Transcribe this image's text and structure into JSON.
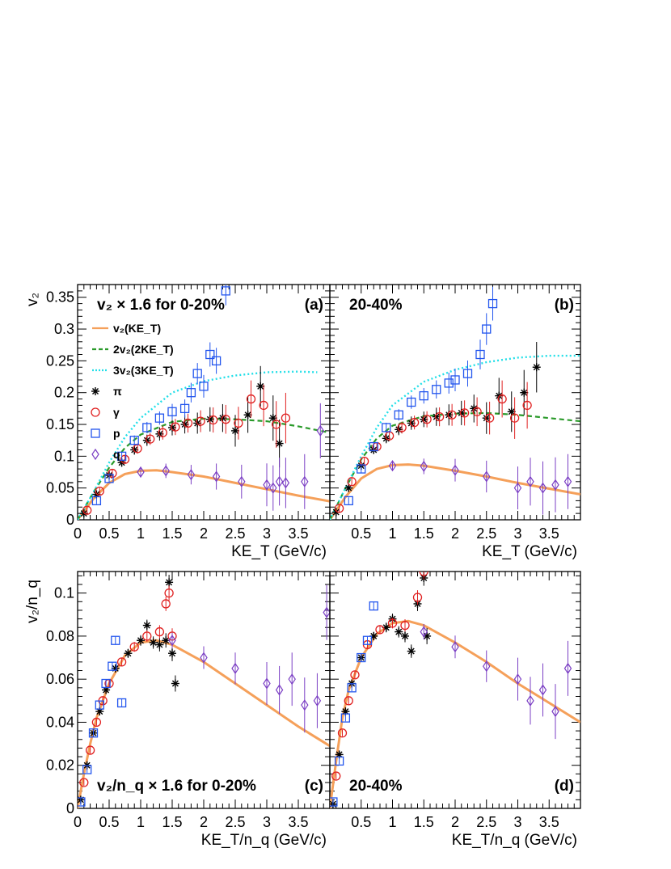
{
  "chart_data": [
    {
      "id": "a",
      "type": "scatter",
      "panel_label": "(a)",
      "title": "v₂ × 1.6 for 0-20%",
      "xlabel": "KE_T (GeV/c)",
      "ylabel": "v₂",
      "xlim": [
        0,
        4.0
      ],
      "ylim": [
        0,
        0.37
      ],
      "xticks": [
        "0",
        "0.5",
        "1",
        "1.5",
        "2",
        "2.5",
        "3",
        "3.5"
      ],
      "yticks": [
        "0",
        "0.05",
        "0.1",
        "0.15",
        "0.2",
        "0.25",
        "0.3",
        "0.35"
      ],
      "legend": [
        {
          "label": "v₂(KE_T)",
          "style": "solid",
          "color": "#f5a05a"
        },
        {
          "label": "2v₂(2KE_T)",
          "style": "dashed",
          "color": "#2a9a2a"
        },
        {
          "label": "3v₂(3KE_T)",
          "style": "dotted",
          "color": "#22dfe8"
        },
        {
          "label": "π",
          "marker": "star",
          "color": "#000000"
        },
        {
          "label": "γ",
          "marker": "circle",
          "color": "#e02020"
        },
        {
          "label": "p",
          "marker": "square",
          "color": "#2255ee"
        },
        {
          "label": "q",
          "marker": "diamond",
          "color": "#7b3fc4"
        }
      ],
      "series": [
        {
          "name": "v₂(KE_T)",
          "x": [
            0,
            0.25,
            0.5,
            0.75,
            1.0,
            1.25,
            1.5,
            2.0,
            2.5,
            3.0,
            3.5,
            4.0
          ],
          "y": [
            0,
            0.033,
            0.058,
            0.072,
            0.077,
            0.078,
            0.075,
            0.068,
            0.058,
            0.048,
            0.038,
            0.029
          ]
        },
        {
          "name": "2v₂(2KE_T)",
          "x": [
            0,
            0.25,
            0.5,
            0.75,
            1.0,
            1.5,
            2.0,
            2.5,
            3.0,
            3.5,
            4.0
          ],
          "y": [
            0,
            0.043,
            0.082,
            0.113,
            0.134,
            0.154,
            0.159,
            0.158,
            0.155,
            0.147,
            0.137
          ]
        },
        {
          "name": "3v₂(3KE_T)",
          "x": [
            0,
            0.25,
            0.5,
            0.75,
            1.0,
            1.5,
            2.0,
            2.5,
            3.0,
            3.5,
            3.8
          ],
          "y": [
            0,
            0.043,
            0.09,
            0.13,
            0.16,
            0.2,
            0.218,
            0.227,
            0.232,
            0.233,
            0.232
          ]
        },
        {
          "name": "π",
          "x": [
            0.1,
            0.3,
            0.5,
            0.7,
            0.9,
            1.1,
            1.3,
            1.5,
            1.7,
            1.9,
            2.1,
            2.3,
            2.5,
            2.7,
            2.9,
            3.1,
            3.2
          ],
          "y": [
            0.01,
            0.04,
            0.07,
            0.09,
            0.11,
            0.125,
            0.135,
            0.145,
            0.15,
            0.152,
            0.158,
            0.16,
            0.14,
            0.165,
            0.21,
            0.16,
            0.12
          ]
        },
        {
          "name": "γ",
          "x": [
            0.15,
            0.35,
            0.55,
            0.75,
            0.95,
            1.15,
            1.35,
            1.55,
            1.75,
            1.95,
            2.15,
            2.35,
            2.55,
            2.75,
            2.95,
            3.15,
            3.3
          ],
          "y": [
            0.015,
            0.045,
            0.073,
            0.095,
            0.112,
            0.127,
            0.137,
            0.146,
            0.152,
            0.155,
            0.157,
            0.158,
            0.152,
            0.19,
            0.18,
            0.15,
            0.16
          ]
        },
        {
          "name": "p",
          "x": [
            0.3,
            0.5,
            0.7,
            0.9,
            1.1,
            1.3,
            1.5,
            1.7,
            1.8,
            1.9,
            2.0,
            2.1,
            2.2,
            2.35
          ],
          "y": [
            0.03,
            0.065,
            0.1,
            0.125,
            0.145,
            0.16,
            0.17,
            0.175,
            0.2,
            0.23,
            0.21,
            0.26,
            0.25,
            0.36
          ]
        },
        {
          "name": "q",
          "x": [
            1.0,
            1.4,
            1.8,
            2.2,
            2.6,
            3.0,
            3.1,
            3.2,
            3.3,
            3.6,
            3.85
          ],
          "y": [
            0.075,
            0.077,
            0.071,
            0.068,
            0.06,
            0.055,
            0.05,
            0.06,
            0.058,
            0.06,
            0.14
          ]
        }
      ]
    },
    {
      "id": "b",
      "type": "scatter",
      "panel_label": "(b)",
      "title": "20-40%",
      "xlabel": "KE_T (GeV/c)",
      "ylabel": "",
      "xlim": [
        0,
        4.0
      ],
      "ylim": [
        0,
        0.37
      ],
      "xticks": [
        "0.5",
        "1",
        "1.5",
        "2",
        "2.5",
        "3",
        "3.5"
      ],
      "series": [
        {
          "name": "v₂(KE_T)",
          "x": [
            0,
            0.25,
            0.5,
            0.75,
            1.0,
            1.25,
            1.5,
            2.0,
            2.5,
            3.0,
            3.5,
            4.0
          ],
          "y": [
            0,
            0.036,
            0.065,
            0.08,
            0.086,
            0.087,
            0.085,
            0.077,
            0.068,
            0.058,
            0.049,
            0.04
          ]
        },
        {
          "name": "2v₂(2KE_T)",
          "x": [
            0,
            0.25,
            0.5,
            0.75,
            1.0,
            1.5,
            2.0,
            2.5,
            3.0,
            3.5,
            4.0
          ],
          "y": [
            0,
            0.05,
            0.095,
            0.128,
            0.148,
            0.163,
            0.167,
            0.168,
            0.165,
            0.16,
            0.155
          ]
        },
        {
          "name": "3v₂(3KE_T)",
          "x": [
            0,
            0.25,
            0.5,
            0.75,
            1.0,
            1.5,
            2.0,
            2.5,
            3.0,
            3.5,
            4.0
          ],
          "y": [
            0,
            0.05,
            0.1,
            0.145,
            0.18,
            0.217,
            0.236,
            0.248,
            0.255,
            0.258,
            0.258
          ]
        },
        {
          "name": "π",
          "x": [
            0.1,
            0.3,
            0.5,
            0.7,
            0.9,
            1.1,
            1.3,
            1.5,
            1.7,
            1.9,
            2.1,
            2.3,
            2.5,
            2.7,
            2.9,
            3.1,
            3.3
          ],
          "y": [
            0.012,
            0.05,
            0.085,
            0.11,
            0.128,
            0.142,
            0.152,
            0.158,
            0.162,
            0.165,
            0.168,
            0.175,
            0.16,
            0.195,
            0.17,
            0.2,
            0.24
          ]
        },
        {
          "name": "γ",
          "x": [
            0.15,
            0.35,
            0.55,
            0.75,
            0.95,
            1.15,
            1.35,
            1.55,
            1.75,
            1.95,
            2.15,
            2.35,
            2.55,
            2.75,
            2.95,
            3.15
          ],
          "y": [
            0.018,
            0.06,
            0.092,
            0.115,
            0.132,
            0.145,
            0.153,
            0.158,
            0.162,
            0.165,
            0.168,
            0.17,
            0.16,
            0.19,
            0.16,
            0.18
          ]
        },
        {
          "name": "p",
          "x": [
            0.3,
            0.5,
            0.7,
            0.9,
            1.1,
            1.3,
            1.5,
            1.7,
            1.9,
            2.0,
            2.2,
            2.4,
            2.5,
            2.6
          ],
          "y": [
            0.03,
            0.08,
            0.115,
            0.145,
            0.165,
            0.185,
            0.195,
            0.205,
            0.215,
            0.22,
            0.23,
            0.26,
            0.3,
            0.34
          ]
        },
        {
          "name": "q",
          "x": [
            1.0,
            1.5,
            2.0,
            2.5,
            3.0,
            3.2,
            3.4,
            3.6,
            3.8
          ],
          "y": [
            0.085,
            0.084,
            0.078,
            0.068,
            0.05,
            0.06,
            0.05,
            0.055,
            0.06
          ]
        }
      ]
    },
    {
      "id": "c",
      "type": "scatter",
      "panel_label": "(c)",
      "title": "v₂/n_q × 1.6 for 0-20%",
      "xlabel": "KE_T/n_q (GeV/c)",
      "ylabel": "v₂/n_q",
      "xlim": [
        0,
        4.0
      ],
      "ylim": [
        0,
        0.11
      ],
      "xticks": [
        "0",
        "0.5",
        "1",
        "1.5",
        "2",
        "2.5",
        "3",
        "3.5"
      ],
      "yticks": [
        "0",
        "0.02",
        "0.04",
        "0.06",
        "0.08",
        "0.1"
      ],
      "series": [
        {
          "name": "v₂(KE_T)",
          "x": [
            0,
            0.1,
            0.2,
            0.3,
            0.5,
            0.75,
            1.0,
            1.25,
            1.5,
            2.0,
            2.5,
            3.0,
            3.5,
            4.0
          ],
          "y": [
            0,
            0.016,
            0.03,
            0.042,
            0.058,
            0.071,
            0.077,
            0.078,
            0.076,
            0.068,
            0.058,
            0.048,
            0.038,
            0.029
          ]
        },
        {
          "name": "π",
          "x": [
            0.05,
            0.15,
            0.25,
            0.35,
            0.45,
            0.6,
            0.8,
            1.0,
            1.1,
            1.2,
            1.3,
            1.4,
            1.45,
            1.5,
            1.55
          ],
          "y": [
            0.004,
            0.02,
            0.035,
            0.045,
            0.055,
            0.065,
            0.072,
            0.078,
            0.085,
            0.077,
            0.076,
            0.078,
            0.105,
            0.072,
            0.058
          ]
        },
        {
          "name": "γ",
          "x": [
            0.1,
            0.2,
            0.3,
            0.4,
            0.5,
            0.7,
            0.9,
            1.1,
            1.3,
            1.4,
            1.45,
            1.5
          ],
          "y": [
            0.012,
            0.027,
            0.04,
            0.05,
            0.058,
            0.068,
            0.075,
            0.08,
            0.082,
            0.095,
            0.1,
            0.08
          ]
        },
        {
          "name": "p",
          "x": [
            0.05,
            0.15,
            0.25,
            0.35,
            0.45,
            0.55,
            0.6,
            0.7
          ],
          "y": [
            0.003,
            0.018,
            0.035,
            0.048,
            0.058,
            0.066,
            0.078,
            0.049
          ]
        },
        {
          "name": "q",
          "x": [
            1.5,
            2.0,
            2.5,
            3.0,
            3.2,
            3.4,
            3.6,
            3.8,
            3.95
          ],
          "y": [
            0.078,
            0.07,
            0.065,
            0.058,
            0.055,
            0.06,
            0.048,
            0.05,
            0.091
          ]
        }
      ]
    },
    {
      "id": "d",
      "type": "scatter",
      "panel_label": "(d)",
      "title": "20-40%",
      "xlabel": "KE_T/n_q (GeV/c)",
      "ylabel": "",
      "xlim": [
        0,
        4.0
      ],
      "ylim": [
        0,
        0.11
      ],
      "xticks": [
        "0.5",
        "1",
        "1.5",
        "2",
        "2.5",
        "3",
        "3.5"
      ],
      "series": [
        {
          "name": "v₂(KE_T)",
          "x": [
            0,
            0.1,
            0.2,
            0.3,
            0.5,
            0.75,
            1.0,
            1.25,
            1.5,
            2.0,
            2.5,
            3.0,
            3.5,
            4.0
          ],
          "y": [
            0,
            0.022,
            0.042,
            0.055,
            0.07,
            0.081,
            0.086,
            0.087,
            0.085,
            0.077,
            0.068,
            0.058,
            0.049,
            0.04
          ]
        },
        {
          "name": "π",
          "x": [
            0.05,
            0.15,
            0.25,
            0.35,
            0.5,
            0.7,
            0.9,
            1.0,
            1.1,
            1.2,
            1.3,
            1.4,
            1.5,
            1.55
          ],
          "y": [
            0.002,
            0.025,
            0.045,
            0.058,
            0.07,
            0.08,
            0.084,
            0.088,
            0.082,
            0.08,
            0.073,
            0.095,
            0.107,
            0.08
          ]
        },
        {
          "name": "γ",
          "x": [
            0.1,
            0.2,
            0.3,
            0.4,
            0.6,
            0.8,
            1.0,
            1.2,
            1.4,
            1.5
          ],
          "y": [
            0.015,
            0.035,
            0.05,
            0.062,
            0.076,
            0.083,
            0.086,
            0.085,
            0.098,
            0.11
          ]
        },
        {
          "name": "p",
          "x": [
            0.05,
            0.15,
            0.25,
            0.35,
            0.5,
            0.6,
            0.7
          ],
          "y": [
            0.003,
            0.022,
            0.042,
            0.056,
            0.07,
            0.078,
            0.094
          ]
        },
        {
          "name": "q",
          "x": [
            1.5,
            2.0,
            2.5,
            3.0,
            3.2,
            3.4,
            3.6,
            3.8
          ],
          "y": [
            0.082,
            0.075,
            0.066,
            0.06,
            0.05,
            0.055,
            0.045,
            0.065
          ]
        }
      ]
    }
  ]
}
